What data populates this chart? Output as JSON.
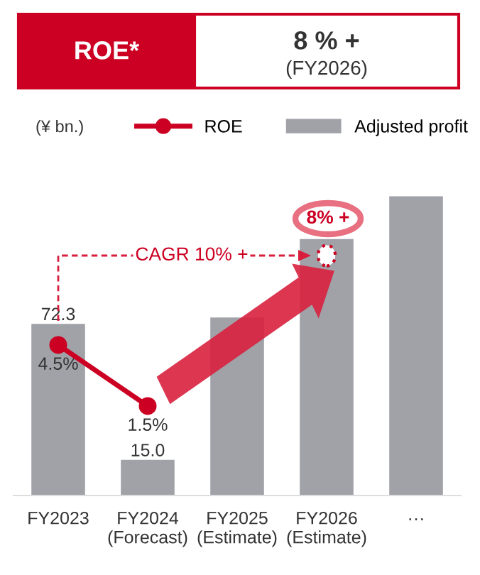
{
  "chart_data": {
    "type": "bar",
    "title": "ROE*",
    "subtitle": "8 % +\n(FY2026)",
    "ylabel": "(¥ bn.)",
    "categories": [
      "FY2023",
      "FY2024\n(Forecast)",
      "FY2025\n(Estimate)",
      "FY2026\n(Estimate)",
      "···"
    ],
    "series": [
      {
        "name": "Adjusted profit",
        "color": "#a0a2a8",
        "values": [
          72.3,
          15.0,
          75,
          108,
          126
        ],
        "value_labels": [
          "72.3",
          "15.0",
          null,
          null,
          null
        ]
      },
      {
        "name": "ROE",
        "type": "line",
        "axis": "y2",
        "color": "#cc0022",
        "values": [
          4.5,
          1.5,
          null,
          null,
          null
        ],
        "value_labels": [
          "4.5%",
          "1.5%",
          null,
          null,
          null
        ]
      }
    ],
    "tick_labels": "x",
    "marker": "circle",
    "legend": "top",
    "grid": false,
    "annotations": [
      "CAGR 10% +",
      "8% +"
    ]
  }
}
